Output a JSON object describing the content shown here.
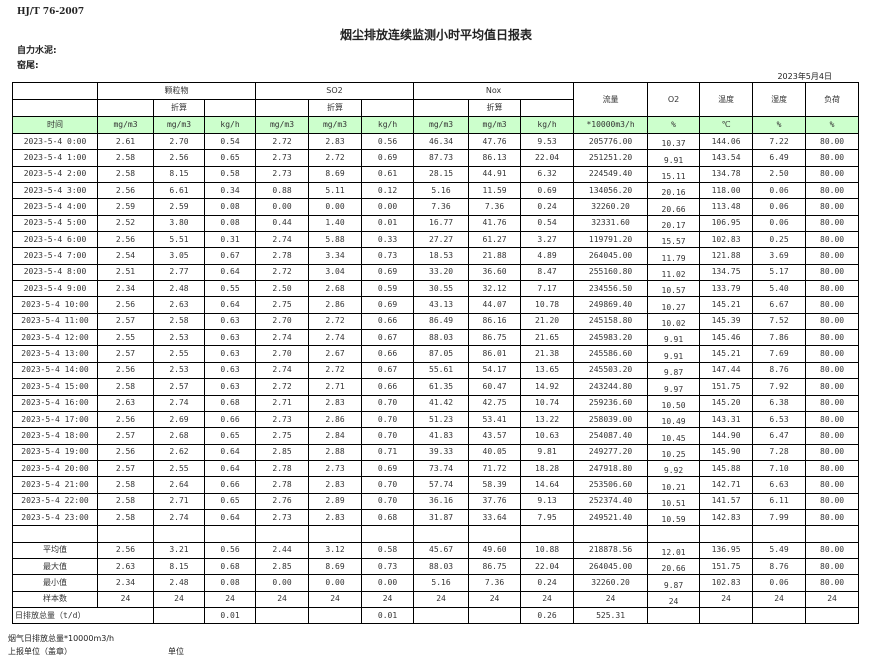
{
  "standard": "HJ/T  76-2007",
  "title": "烟尘排放连续监测小时平均值日报表",
  "company": "自力水泥:",
  "kiln": "窑尾:",
  "date": "2023年5月4日",
  "headers": {
    "particulate": "颗粒物",
    "so2": "SO2",
    "nox": "Nox",
    "converted": "折算",
    "flow": "流量",
    "o2": "O2",
    "temp": "温度",
    "humidity": "湿度",
    "load": "负荷"
  },
  "units": [
    "时间",
    "mg/m3",
    "mg/m3",
    "kg/h",
    "mg/m3",
    "mg/m3",
    "kg/h",
    "mg/m3",
    "mg/m3",
    "kg/h",
    "*10000m3/h",
    "%",
    "℃",
    "%",
    "%"
  ],
  "rows": [
    [
      "2023-5-4 0:00",
      "2.61",
      "2.70",
      "0.54",
      "2.72",
      "2.83",
      "0.56",
      "46.34",
      "47.76",
      "9.53",
      "205776.00",
      "10.37",
      "144.06",
      "7.22",
      "80.00"
    ],
    [
      "2023-5-4 1:00",
      "2.58",
      "2.56",
      "0.65",
      "2.73",
      "2.72",
      "0.69",
      "87.73",
      "86.13",
      "22.04",
      "251251.20",
      "9.91",
      "143.54",
      "6.49",
      "80.00"
    ],
    [
      "2023-5-4 2:00",
      "2.58",
      "8.15",
      "0.58",
      "2.73",
      "8.69",
      "0.61",
      "28.15",
      "44.91",
      "6.32",
      "224549.40",
      "15.11",
      "134.78",
      "2.50",
      "80.00"
    ],
    [
      "2023-5-4 3:00",
      "2.56",
      "6.61",
      "0.34",
      "0.88",
      "5.11",
      "0.12",
      "5.16",
      "11.59",
      "0.69",
      "134056.20",
      "20.16",
      "118.00",
      "0.06",
      "80.00"
    ],
    [
      "2023-5-4 4:00",
      "2.59",
      "2.59",
      "0.08",
      "0.00",
      "0.00",
      "0.00",
      "7.36",
      "7.36",
      "0.24",
      "32260.20",
      "20.66",
      "113.48",
      "0.06",
      "80.00"
    ],
    [
      "2023-5-4 5:00",
      "2.52",
      "3.80",
      "0.08",
      "0.44",
      "1.40",
      "0.01",
      "16.77",
      "41.76",
      "0.54",
      "32331.60",
      "20.17",
      "106.95",
      "0.06",
      "80.00"
    ],
    [
      "2023-5-4 6:00",
      "2.56",
      "5.51",
      "0.31",
      "2.74",
      "5.88",
      "0.33",
      "27.27",
      "61.27",
      "3.27",
      "119791.20",
      "15.57",
      "102.83",
      "0.25",
      "80.00"
    ],
    [
      "2023-5-4 7:00",
      "2.54",
      "3.05",
      "0.67",
      "2.78",
      "3.34",
      "0.73",
      "18.53",
      "21.88",
      "4.89",
      "264045.00",
      "11.79",
      "121.88",
      "3.69",
      "80.00"
    ],
    [
      "2023-5-4 8:00",
      "2.51",
      "2.77",
      "0.64",
      "2.72",
      "3.04",
      "0.69",
      "33.20",
      "36.60",
      "8.47",
      "255160.80",
      "11.02",
      "134.75",
      "5.17",
      "80.00"
    ],
    [
      "2023-5-4 9:00",
      "2.34",
      "2.48",
      "0.55",
      "2.50",
      "2.68",
      "0.59",
      "30.55",
      "32.12",
      "7.17",
      "234556.50",
      "10.57",
      "133.79",
      "5.40",
      "80.00"
    ],
    [
      "2023-5-4 10:00",
      "2.56",
      "2.63",
      "0.64",
      "2.75",
      "2.86",
      "0.69",
      "43.13",
      "44.07",
      "10.78",
      "249869.40",
      "10.27",
      "145.21",
      "6.67",
      "80.00"
    ],
    [
      "2023-5-4 11:00",
      "2.57",
      "2.58",
      "0.63",
      "2.70",
      "2.72",
      "0.66",
      "86.49",
      "86.16",
      "21.20",
      "245158.80",
      "10.02",
      "145.39",
      "7.52",
      "80.00"
    ],
    [
      "2023-5-4 12:00",
      "2.55",
      "2.53",
      "0.63",
      "2.74",
      "2.74",
      "0.67",
      "88.03",
      "86.75",
      "21.65",
      "245983.20",
      "9.91",
      "145.46",
      "7.86",
      "80.00"
    ],
    [
      "2023-5-4 13:00",
      "2.57",
      "2.55",
      "0.63",
      "2.70",
      "2.67",
      "0.66",
      "87.05",
      "86.01",
      "21.38",
      "245586.60",
      "9.91",
      "145.21",
      "7.69",
      "80.00"
    ],
    [
      "2023-5-4 14:00",
      "2.56",
      "2.53",
      "0.63",
      "2.74",
      "2.72",
      "0.67",
      "55.61",
      "54.17",
      "13.65",
      "245503.20",
      "9.87",
      "147.44",
      "8.76",
      "80.00"
    ],
    [
      "2023-5-4 15:00",
      "2.58",
      "2.57",
      "0.63",
      "2.72",
      "2.71",
      "0.66",
      "61.35",
      "60.47",
      "14.92",
      "243244.80",
      "9.97",
      "151.75",
      "7.92",
      "80.00"
    ],
    [
      "2023-5-4 16:00",
      "2.63",
      "2.74",
      "0.68",
      "2.71",
      "2.83",
      "0.70",
      "41.42",
      "42.75",
      "10.74",
      "259236.60",
      "10.50",
      "145.20",
      "6.38",
      "80.00"
    ],
    [
      "2023-5-4 17:00",
      "2.56",
      "2.69",
      "0.66",
      "2.73",
      "2.86",
      "0.70",
      "51.23",
      "53.41",
      "13.22",
      "258039.00",
      "10.49",
      "143.31",
      "6.53",
      "80.00"
    ],
    [
      "2023-5-4 18:00",
      "2.57",
      "2.68",
      "0.65",
      "2.75",
      "2.84",
      "0.70",
      "41.83",
      "43.57",
      "10.63",
      "254087.40",
      "10.45",
      "144.90",
      "6.47",
      "80.00"
    ],
    [
      "2023-5-4 19:00",
      "2.56",
      "2.62",
      "0.64",
      "2.85",
      "2.88",
      "0.71",
      "39.33",
      "40.05",
      "9.81",
      "249277.20",
      "10.25",
      "145.90",
      "7.28",
      "80.00"
    ],
    [
      "2023-5-4 20:00",
      "2.57",
      "2.55",
      "0.64",
      "2.78",
      "2.73",
      "0.69",
      "73.74",
      "71.72",
      "18.28",
      "247918.80",
      "9.92",
      "145.88",
      "7.10",
      "80.00"
    ],
    [
      "2023-5-4 21:00",
      "2.58",
      "2.64",
      "0.66",
      "2.78",
      "2.83",
      "0.70",
      "57.74",
      "58.39",
      "14.64",
      "253506.60",
      "10.21",
      "142.71",
      "6.63",
      "80.00"
    ],
    [
      "2023-5-4 22:00",
      "2.58",
      "2.71",
      "0.65",
      "2.76",
      "2.89",
      "0.70",
      "36.16",
      "37.76",
      "9.13",
      "252374.40",
      "10.51",
      "141.57",
      "6.11",
      "80.00"
    ],
    [
      "2023-5-4 23:00",
      "2.58",
      "2.74",
      "0.64",
      "2.73",
      "2.83",
      "0.68",
      "31.87",
      "33.64",
      "7.95",
      "249521.40",
      "10.59",
      "142.83",
      "7.99",
      "80.00"
    ]
  ],
  "stats": [
    [
      "平均值",
      "2.56",
      "3.21",
      "0.56",
      "2.44",
      "3.12",
      "0.58",
      "45.67",
      "49.60",
      "10.88",
      "218878.56",
      "12.01",
      "136.95",
      "5.49",
      "80.00"
    ],
    [
      "最大值",
      "2.63",
      "8.15",
      "0.68",
      "2.85",
      "8.69",
      "0.73",
      "88.03",
      "86.75",
      "22.04",
      "264045.00",
      "20.66",
      "151.75",
      "8.76",
      "80.00"
    ],
    [
      "最小值",
      "2.34",
      "2.48",
      "0.08",
      "0.00",
      "0.00",
      "0.00",
      "5.16",
      "7.36",
      "0.24",
      "32260.20",
      "9.87",
      "102.83",
      "0.06",
      "80.00"
    ],
    [
      "样本数",
      "24",
      "24",
      "24",
      "24",
      "24",
      "24",
      "24",
      "24",
      "24",
      "24",
      "24",
      "24",
      "24",
      "24"
    ]
  ],
  "daily_total": {
    "label": "日排放总量（t/d）",
    "particulate_kgh": "0.01",
    "so2_kgh": "0.01",
    "nox_kgh": "0.26",
    "flow": "525.31"
  },
  "footer": {
    "flue_total": "烟气日排放总量*10000m3/h",
    "reporter": "上报单位（盖章）",
    "unit": "单位"
  }
}
